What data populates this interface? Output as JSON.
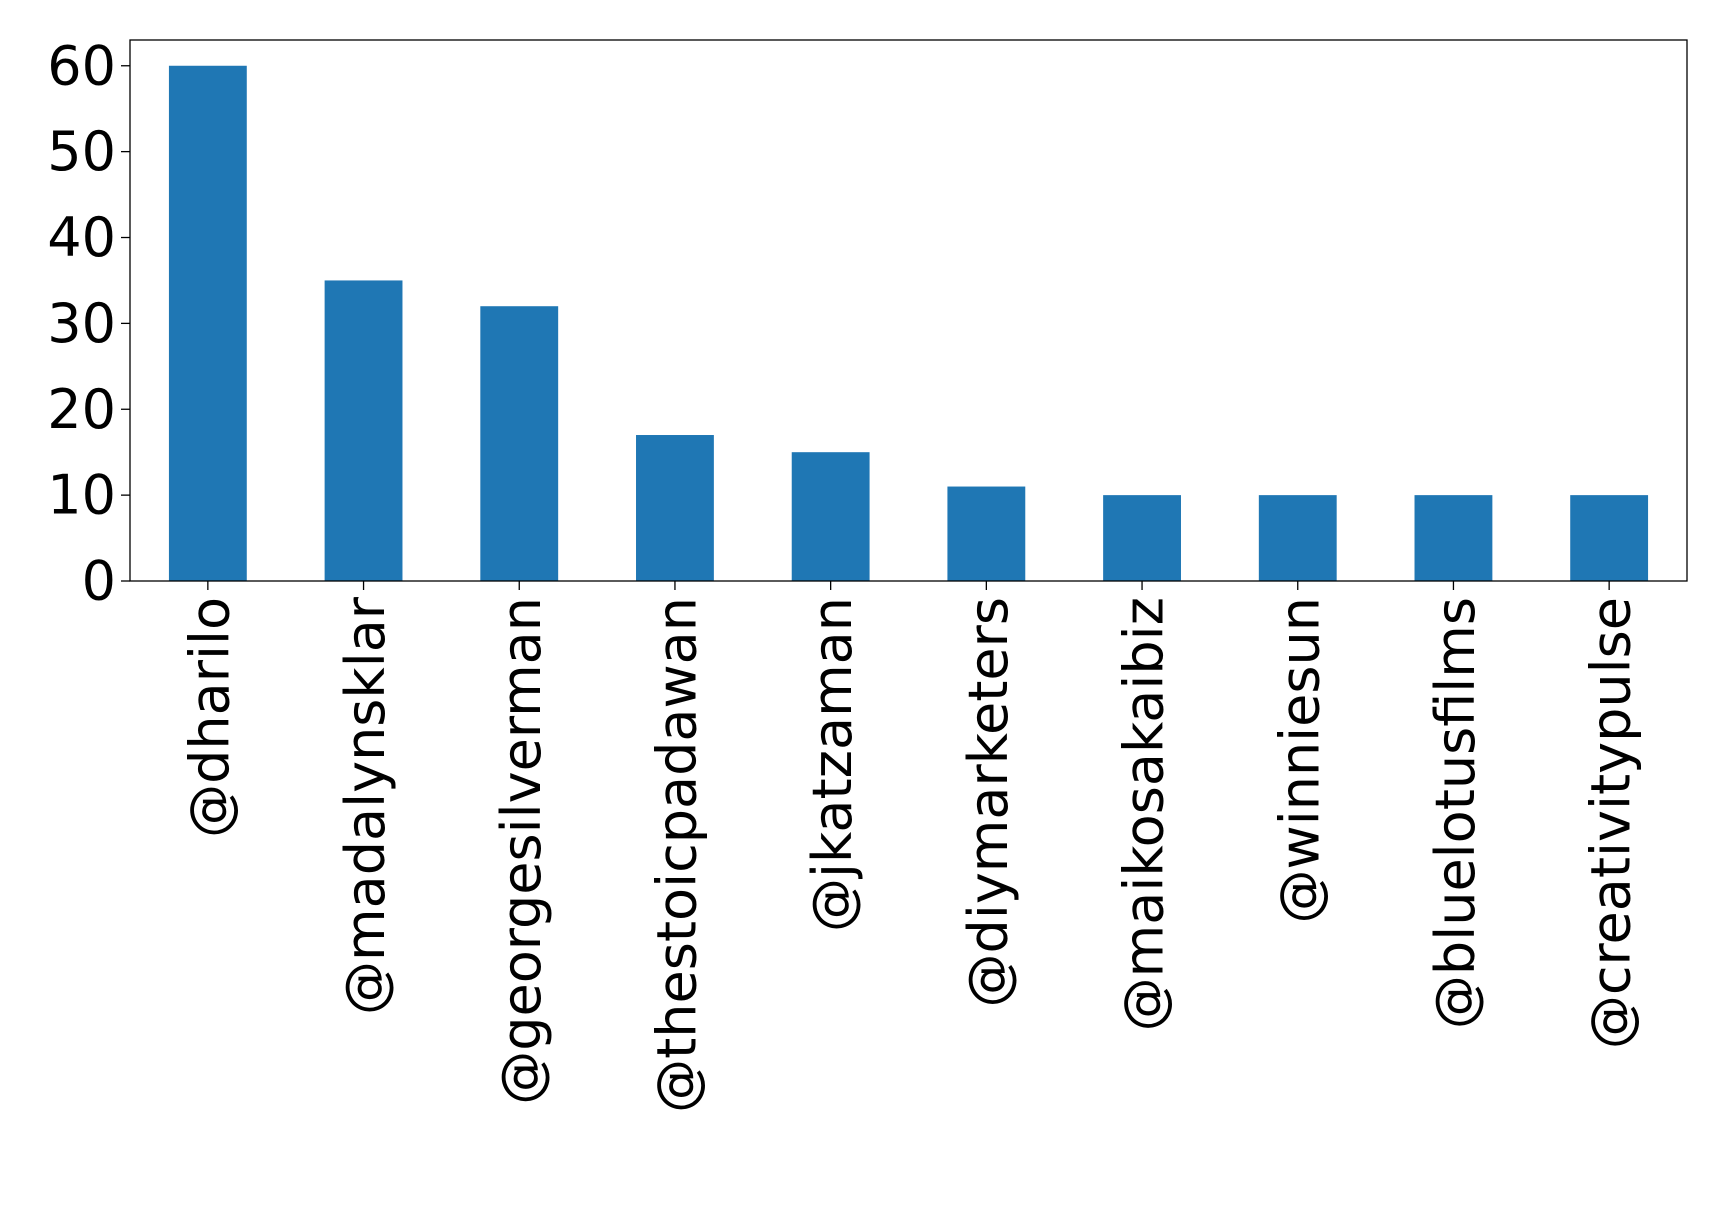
{
  "chart_data": {
    "type": "bar",
    "title": "",
    "xlabel": "",
    "ylabel": "",
    "categories": [
      "@dharilo",
      "@madalynsklar",
      "@georgesilverman",
      "@thestoicpadawan",
      "@jkatzaman",
      "@diymarketers",
      "@maikosakaibiz",
      "@winniesun",
      "@bluelotusfilms",
      "@creativitypulse"
    ],
    "values": [
      60,
      35,
      32,
      17,
      15,
      11,
      10,
      10,
      10,
      10
    ],
    "ylim": [
      0,
      63
    ],
    "yticks": [
      0,
      10,
      20,
      30,
      40,
      50,
      60
    ],
    "grid": false,
    "legend": "none",
    "bar_color": "#1f77b4"
  }
}
